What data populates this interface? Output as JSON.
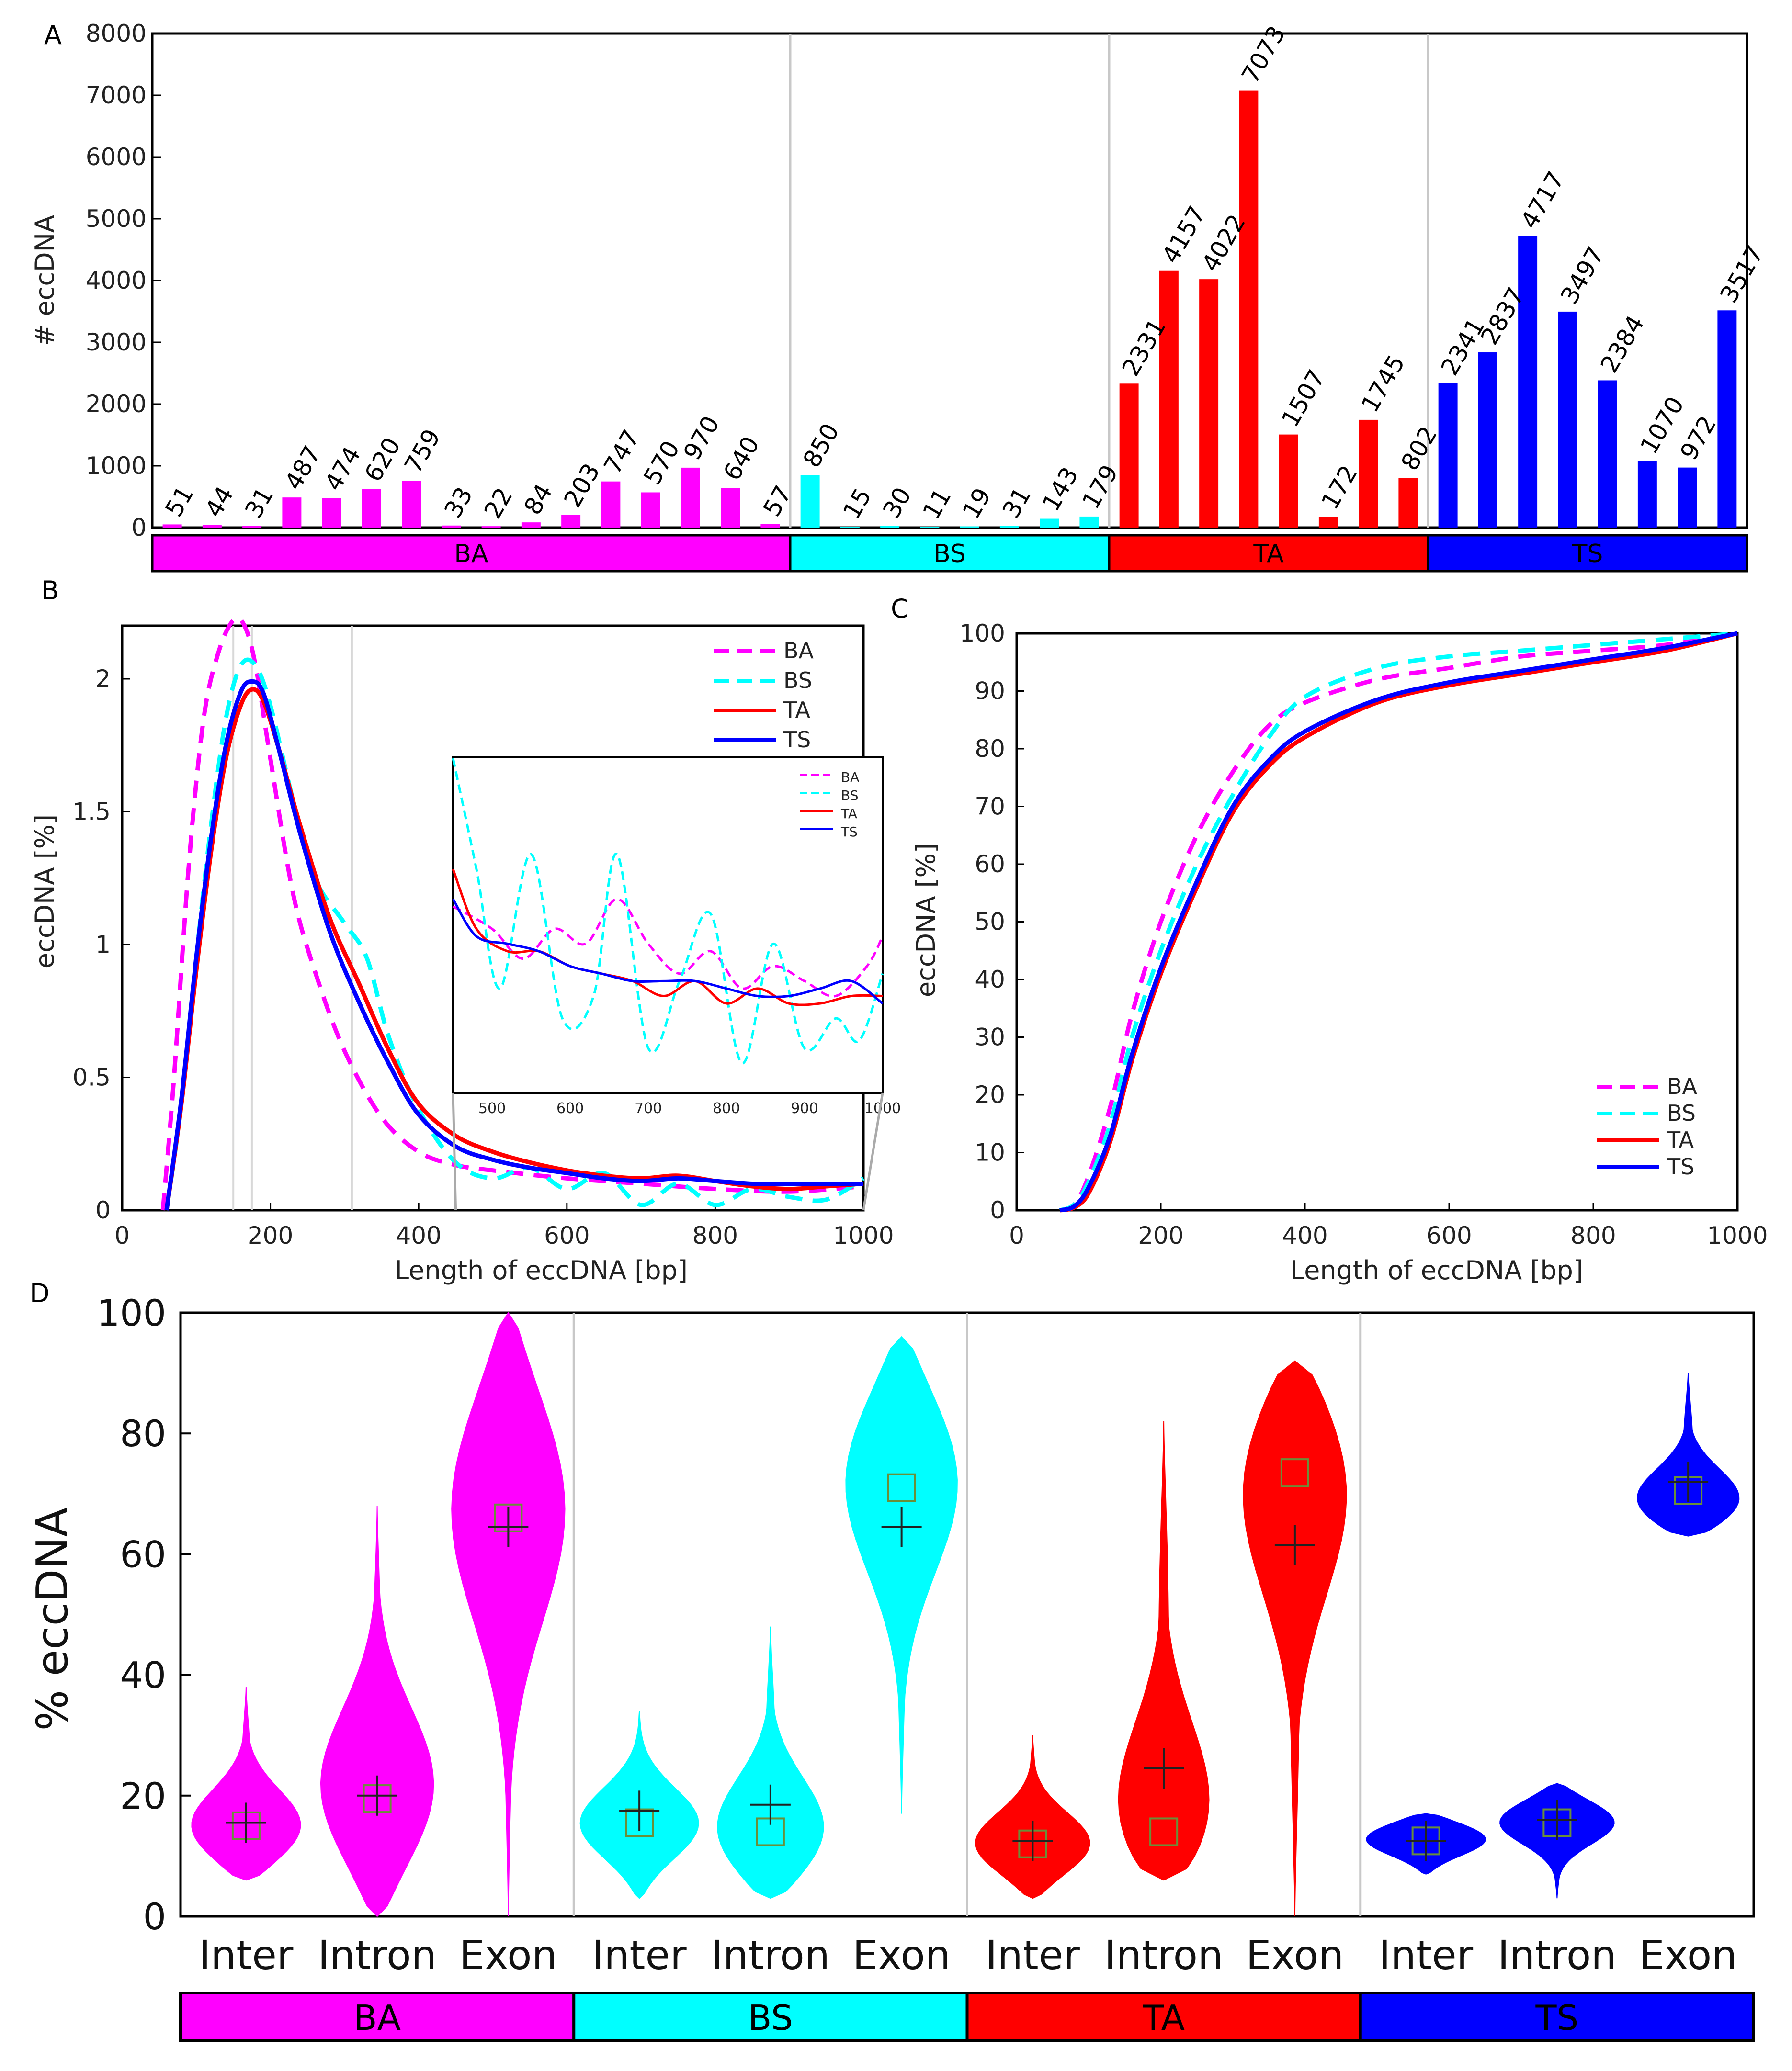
{
  "colors": {
    "BA": "#ff00ff",
    "BS": "#00ffff",
    "TA": "#ff0000",
    "TS": "#0000ff"
  },
  "chart_data": [
    {
      "panel": "A",
      "type": "bar",
      "ylabel": "# eccDNA",
      "ylim": [
        0,
        8000
      ],
      "yticks": [
        0,
        1000,
        2000,
        3000,
        4000,
        5000,
        6000,
        7000,
        8000
      ],
      "groups": [
        "BA",
        "BS",
        "TA",
        "TS"
      ],
      "series": [
        {
          "name": "BA",
          "values": [
            51,
            44,
            31,
            487,
            474,
            620,
            759,
            33,
            22,
            84,
            203,
            747,
            570,
            970,
            640,
            57
          ]
        },
        {
          "name": "BS",
          "values": [
            850,
            15,
            30,
            11,
            19,
            31,
            143,
            179
          ]
        },
        {
          "name": "TA",
          "values": [
            2331,
            4157,
            4022,
            7073,
            1507,
            172,
            1745,
            802
          ]
        },
        {
          "name": "TS",
          "values": [
            2341,
            2837,
            4717,
            3497,
            2384,
            1070,
            972,
            3517
          ]
        }
      ]
    },
    {
      "panel": "B",
      "type": "line",
      "xlabel": "Length of eccDNA [bp]",
      "ylabel": "eccDNA [%]",
      "xlim": [
        0,
        1000
      ],
      "ylim": [
        0,
        2.2
      ],
      "xticks": [
        0,
        200,
        400,
        600,
        800,
        1000
      ],
      "yticks": [
        0,
        0.5,
        1,
        1.5,
        2
      ],
      "ytick_labels": [
        "0",
        "0.5",
        "1",
        "1.5",
        "2"
      ],
      "legend": [
        "BA",
        "BS",
        "TA",
        "TS"
      ],
      "legend_position": "top-right",
      "series": [
        {
          "name": "BA",
          "style": "dashed",
          "x": [
            55,
            70,
            90,
            110,
            130,
            150,
            165,
            180,
            200,
            230,
            260,
            300,
            350,
            400,
            450,
            500,
            600,
            700,
            800,
            900,
            1000
          ],
          "y": [
            0,
            0.5,
            1.3,
            1.85,
            2.1,
            2.22,
            2.2,
            2.05,
            1.7,
            1.2,
            0.9,
            0.6,
            0.35,
            0.22,
            0.17,
            0.15,
            0.12,
            0.1,
            0.08,
            0.07,
            0.09
          ]
        },
        {
          "name": "BS",
          "style": "dashed",
          "x": [
            60,
            80,
            100,
            120,
            140,
            160,
            180,
            200,
            230,
            260,
            300,
            330,
            360,
            400,
            450,
            500,
            550,
            600,
            650,
            700,
            750,
            800,
            850,
            900,
            950,
            1000
          ],
          "y": [
            0,
            0.4,
            0.95,
            1.45,
            1.85,
            2.05,
            2.05,
            1.9,
            1.55,
            1.25,
            1.08,
            0.95,
            0.65,
            0.38,
            0.18,
            0.12,
            0.16,
            0.08,
            0.14,
            0.02,
            0.1,
            0.02,
            0.08,
            0.05,
            0.04,
            0.12
          ]
        },
        {
          "name": "TA",
          "style": "solid",
          "x": [
            60,
            80,
            100,
            120,
            140,
            160,
            175,
            190,
            210,
            240,
            280,
            320,
            360,
            400,
            450,
            500,
            550,
            600,
            650,
            700,
            750,
            800,
            850,
            900,
            950,
            1000
          ],
          "y": [
            0,
            0.4,
            0.9,
            1.35,
            1.7,
            1.9,
            1.96,
            1.92,
            1.75,
            1.45,
            1.1,
            0.85,
            0.6,
            0.4,
            0.28,
            0.22,
            0.18,
            0.15,
            0.13,
            0.12,
            0.13,
            0.11,
            0.09,
            0.08,
            0.09,
            0.1
          ]
        },
        {
          "name": "TS",
          "style": "solid",
          "x": [
            60,
            80,
            100,
            120,
            140,
            160,
            175,
            190,
            210,
            240,
            280,
            320,
            360,
            400,
            450,
            500,
            550,
            600,
            650,
            700,
            750,
            800,
            850,
            900,
            950,
            1000
          ],
          "y": [
            0,
            0.42,
            0.95,
            1.4,
            1.75,
            1.95,
            1.99,
            1.95,
            1.75,
            1.42,
            1.05,
            0.78,
            0.55,
            0.36,
            0.24,
            0.19,
            0.16,
            0.14,
            0.12,
            0.11,
            0.12,
            0.11,
            0.1,
            0.1,
            0.1,
            0.1
          ]
        }
      ],
      "inset": {
        "xlim": [
          450,
          1000
        ],
        "xticks": [
          500,
          600,
          700,
          800,
          900,
          1000
        ],
        "legend": [
          "BA",
          "BS",
          "TA",
          "TS"
        ]
      }
    },
    {
      "panel": "C",
      "type": "line",
      "xlabel": "Length of eccDNA [bp]",
      "ylabel": "eccDNA [%]",
      "xlim": [
        0,
        1000
      ],
      "ylim": [
        0,
        100
      ],
      "xticks": [
        0,
        200,
        400,
        600,
        800,
        1000
      ],
      "yticks": [
        0,
        10,
        20,
        30,
        40,
        50,
        60,
        70,
        80,
        90,
        100
      ],
      "legend": [
        "BA",
        "BS",
        "TA",
        "TS"
      ],
      "legend_position": "bottom-right",
      "series": [
        {
          "name": "BA",
          "style": "dashed",
          "x": [
            60,
            80,
            100,
            130,
            160,
            200,
            250,
            300,
            350,
            400,
            500,
            600,
            700,
            800,
            900,
            1000
          ],
          "y": [
            0,
            1,
            6,
            18,
            34,
            50,
            65,
            76,
            84,
            88,
            92,
            94,
            96,
            97,
            98,
            100
          ]
        },
        {
          "name": "BS",
          "style": "dashed",
          "x": [
            60,
            80,
            100,
            130,
            160,
            200,
            250,
            300,
            350,
            400,
            500,
            600,
            700,
            800,
            900,
            1000
          ],
          "y": [
            0,
            1,
            5,
            15,
            30,
            45,
            60,
            72,
            82,
            89,
            94,
            96,
            97,
            98,
            99,
            100
          ]
        },
        {
          "name": "TA",
          "style": "solid",
          "x": [
            60,
            80,
            100,
            130,
            160,
            200,
            250,
            300,
            350,
            400,
            500,
            600,
            700,
            800,
            900,
            1000
          ],
          "y": [
            0,
            0.5,
            3,
            12,
            26,
            41,
            56,
            69,
            77,
            82,
            88,
            91,
            93,
            95,
            97,
            100
          ]
        },
        {
          "name": "TS",
          "style": "solid",
          "x": [
            60,
            80,
            100,
            130,
            160,
            200,
            250,
            300,
            350,
            400,
            500,
            600,
            700,
            800,
            900,
            1000
          ],
          "y": [
            0,
            0.7,
            4,
            13,
            27,
            42,
            57,
            70,
            78,
            83,
            88.5,
            91.5,
            93.5,
            95.5,
            97.5,
            100
          ]
        }
      ]
    },
    {
      "panel": "D",
      "type": "violin",
      "ylabel": "% eccDNA",
      "ylim": [
        0,
        100
      ],
      "yticks": [
        0,
        20,
        40,
        60,
        80,
        100
      ],
      "groups": [
        "BA",
        "BS",
        "TA",
        "TS"
      ],
      "categories": [
        "Inter",
        "Intron",
        "Exon"
      ],
      "violins": [
        {
          "group": "BA",
          "category": "Inter",
          "min": 6,
          "max": 38,
          "mode": 14,
          "mean": 15.5,
          "median": 15
        },
        {
          "group": "BA",
          "category": "Intron",
          "min": 0,
          "max": 68,
          "mode": 20,
          "mean": 20,
          "median": 19.5
        },
        {
          "group": "BA",
          "category": "Exon",
          "min": 0,
          "max": 100,
          "mode": 70,
          "mean": 64.5,
          "median": 66
        },
        {
          "group": "BS",
          "category": "Inter",
          "min": 3,
          "max": 34,
          "mode": 15,
          "mean": 17.5,
          "median": 15.5
        },
        {
          "group": "BS",
          "category": "Intron",
          "min": 3,
          "max": 48,
          "mode": 13,
          "mean": 18.5,
          "median": 14
        },
        {
          "group": "BS",
          "category": "Exon",
          "min": 17,
          "max": 96,
          "mode": 74,
          "mean": 64.5,
          "median": 71
        },
        {
          "group": "TA",
          "category": "Inter",
          "min": 3,
          "max": 30,
          "mode": 11.5,
          "mean": 12.5,
          "median": 12
        },
        {
          "group": "TA",
          "category": "Intron",
          "min": 6,
          "max": 82,
          "mode": 14,
          "mean": 24.5,
          "median": 14
        },
        {
          "group": "TA",
          "category": "Exon",
          "min": 0,
          "max": 92,
          "mode": 74,
          "mean": 61.5,
          "median": 73.5
        },
        {
          "group": "TS",
          "category": "Inter",
          "min": 7,
          "max": 17,
          "mode": 13,
          "mean": 12.5,
          "median": 12.5
        },
        {
          "group": "TS",
          "category": "Intron",
          "min": 3,
          "max": 22,
          "mode": 16,
          "mean": 16,
          "median": 15.5
        },
        {
          "group": "TS",
          "category": "Exon",
          "min": 63,
          "max": 90,
          "mode": 68,
          "mean": 72,
          "median": 70.5
        }
      ]
    }
  ]
}
